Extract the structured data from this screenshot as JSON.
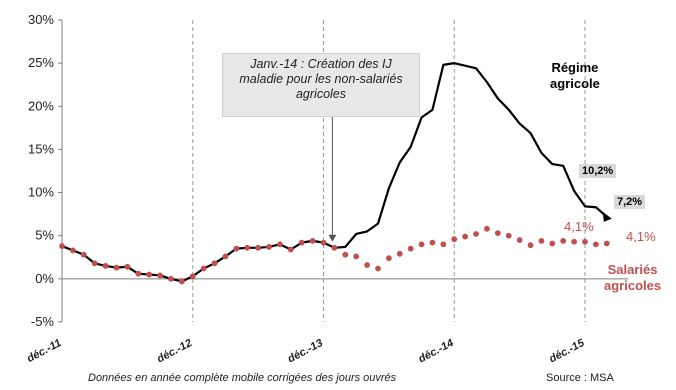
{
  "chart_data": {
    "type": "line",
    "x_ticks": [
      "déc.-11",
      "déc.-12",
      "déc.-13",
      "déc.-14",
      "déc.-15"
    ],
    "y_ticks": [
      "30%",
      "25%",
      "20%",
      "15%",
      "10%",
      "5%",
      "0%",
      "-5%"
    ],
    "ylim": [
      -5,
      30
    ],
    "grid": {
      "horizontal": false,
      "vertical": "dashed at x ticks"
    },
    "annotation": {
      "lines": [
        "Janv.-14 : Création des IJ",
        "maladie pour les non-salariés",
        "agricoles"
      ],
      "arrow_at_month_index": 25
    },
    "series": [
      {
        "name": "Régime agricole",
        "label_lines": [
          "Régime",
          "agricole"
        ],
        "color": "#000000",
        "style": "solid",
        "start": "déc.-11",
        "values": [
          3.8,
          3.3,
          2.8,
          1.8,
          1.5,
          1.3,
          1.4,
          0.6,
          0.5,
          0.4,
          0.0,
          -0.3,
          0.3,
          1.2,
          1.8,
          2.6,
          3.5,
          3.6,
          3.6,
          3.7,
          4.0,
          3.4,
          4.2,
          4.4,
          4.2,
          3.6,
          3.7,
          5.2,
          5.5,
          6.4,
          10.5,
          13.5,
          15.3,
          18.7,
          19.6,
          24.8,
          25.0,
          24.7,
          24.4,
          22.8,
          20.9,
          19.6,
          18.0,
          16.9,
          14.6,
          13.3,
          13.1,
          10.2,
          8.4,
          8.3,
          7.2
        ]
      },
      {
        "name": "Salariés agricoles",
        "label_lines": [
          "Salariés",
          "agricoles"
        ],
        "color": "#c0504d",
        "style": "dotted",
        "start": "déc.-11",
        "values": [
          3.8,
          3.3,
          2.8,
          1.8,
          1.5,
          1.3,
          1.4,
          0.6,
          0.5,
          0.4,
          0.0,
          -0.3,
          0.3,
          1.2,
          1.8,
          2.6,
          3.5,
          3.6,
          3.6,
          3.7,
          4.0,
          3.4,
          4.2,
          4.4,
          4.2,
          3.6,
          2.8,
          2.6,
          1.6,
          1.2,
          2.4,
          2.9,
          3.5,
          4.0,
          4.2,
          4.0,
          4.6,
          4.9,
          5.2,
          5.8,
          5.3,
          5.0,
          4.5,
          3.9,
          4.4,
          4.1,
          4.4,
          4.3,
          4.3,
          4.0,
          4.1
        ]
      }
    ],
    "value_labels": {
      "regime_1": "10,2%",
      "regime_2": "7,2%",
      "salaries_1": "4,1%",
      "salaries_2": "4,1%"
    }
  },
  "footer": {
    "note": "Données en année complète mobile corrigées des jours ouvrés",
    "source": "Source : MSA"
  }
}
